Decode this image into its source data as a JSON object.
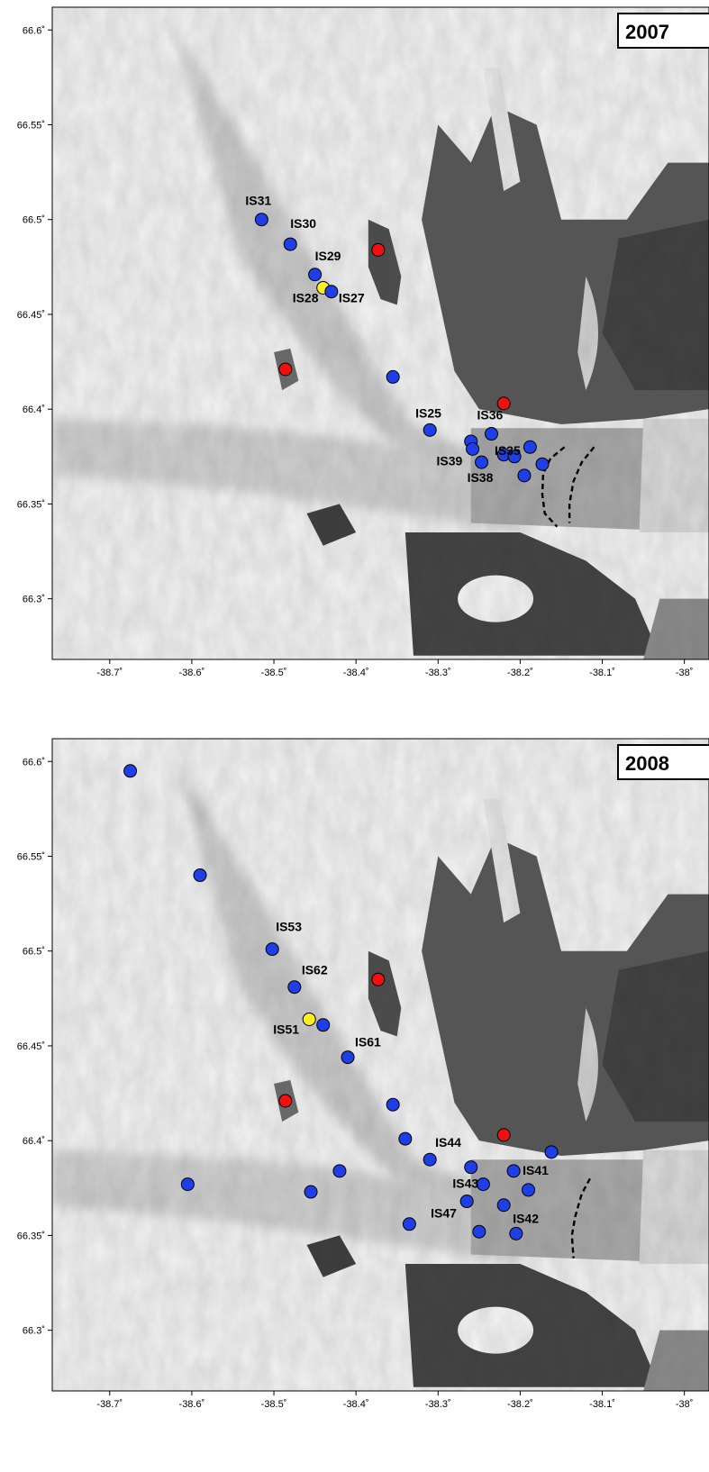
{
  "colors": {
    "blue_site": "#1f3fe6",
    "red_site": "#f01010",
    "yellow_site": "#ffee22",
    "marker_edge": "#000000"
  },
  "axes": {
    "lon_ticks": [
      {
        "value": -38.7,
        "label": "-38.7˚"
      },
      {
        "value": -38.6,
        "label": "-38.6˚"
      },
      {
        "value": -38.5,
        "label": "-38.5˚"
      },
      {
        "value": -38.4,
        "label": "-38.4˚"
      },
      {
        "value": -38.3,
        "label": "-38.3˚"
      },
      {
        "value": -38.2,
        "label": "-38.2˚"
      },
      {
        "value": -38.1,
        "label": "-38.1˚"
      },
      {
        "value": -38.0,
        "label": "-38˚"
      }
    ],
    "lat_ticks": [
      {
        "value": 66.6,
        "label": "66.6˚"
      },
      {
        "value": 66.55,
        "label": "66.55˚"
      },
      {
        "value": 66.5,
        "label": "66.5˚"
      },
      {
        "value": 66.45,
        "label": "66.45˚"
      },
      {
        "value": 66.4,
        "label": "66.4˚"
      },
      {
        "value": 66.35,
        "label": "66.35˚"
      },
      {
        "value": 66.3,
        "label": "66.3˚"
      }
    ],
    "lon_range": [
      -38.77,
      -37.97
    ],
    "lat_range": [
      66.268,
      66.612
    ]
  },
  "panels": [
    {
      "year": "2007",
      "sites": [
        {
          "lon": -38.515,
          "lat": 66.5,
          "color": "blue",
          "label": "IS31"
        },
        {
          "lon": -38.48,
          "lat": 66.487,
          "color": "blue",
          "label": "IS30"
        },
        {
          "lon": -38.45,
          "lat": 66.471,
          "color": "blue",
          "label": "IS29"
        },
        {
          "lon": -38.44,
          "lat": 66.464,
          "color": "yellow",
          "label": "IS28"
        },
        {
          "lon": -38.43,
          "lat": 66.462,
          "color": "blue",
          "label": "IS27"
        },
        {
          "lon": -38.373,
          "lat": 66.484,
          "color": "red",
          "label": ""
        },
        {
          "lon": -38.486,
          "lat": 66.421,
          "color": "red",
          "label": ""
        },
        {
          "lon": -38.355,
          "lat": 66.417,
          "color": "blue",
          "label": ""
        },
        {
          "lon": -38.22,
          "lat": 66.403,
          "color": "red",
          "label": ""
        },
        {
          "lon": -38.31,
          "lat": 66.389,
          "color": "blue",
          "label": "IS25"
        },
        {
          "lon": -38.26,
          "lat": 66.383,
          "color": "blue",
          "label": ""
        },
        {
          "lon": -38.258,
          "lat": 66.379,
          "color": "blue",
          "label": "IS39"
        },
        {
          "lon": -38.235,
          "lat": 66.387,
          "color": "blue",
          "label": "IS36"
        },
        {
          "lon": -38.22,
          "lat": 66.376,
          "color": "blue",
          "label": ""
        },
        {
          "lon": -38.207,
          "lat": 66.375,
          "color": "blue",
          "label": "IS35"
        },
        {
          "lon": -38.188,
          "lat": 66.38,
          "color": "blue",
          "label": ""
        },
        {
          "lon": -38.247,
          "lat": 66.372,
          "color": "blue",
          "label": "IS38"
        },
        {
          "lon": -38.195,
          "lat": 66.365,
          "color": "blue",
          "label": ""
        },
        {
          "lon": -38.173,
          "lat": 66.371,
          "color": "blue",
          "label": ""
        }
      ],
      "fronts": [
        [
          [
            -38.146,
            66.38
          ],
          [
            -38.163,
            66.374
          ],
          [
            -38.172,
            66.366
          ],
          [
            -38.173,
            66.355
          ],
          [
            -38.17,
            66.345
          ],
          [
            -38.155,
            66.338
          ]
        ],
        [
          [
            -38.11,
            66.38
          ],
          [
            -38.125,
            66.372
          ],
          [
            -38.135,
            66.362
          ],
          [
            -38.14,
            66.35
          ],
          [
            -38.14,
            66.34
          ]
        ]
      ]
    },
    {
      "year": "2008",
      "sites": [
        {
          "lon": -38.675,
          "lat": 66.595,
          "color": "blue",
          "label": ""
        },
        {
          "lon": -38.59,
          "lat": 66.54,
          "color": "blue",
          "label": ""
        },
        {
          "lon": -38.502,
          "lat": 66.501,
          "color": "blue",
          "label": "IS53"
        },
        {
          "lon": -38.475,
          "lat": 66.481,
          "color": "blue",
          "label": "IS62"
        },
        {
          "lon": -38.373,
          "lat": 66.485,
          "color": "red",
          "label": ""
        },
        {
          "lon": -38.457,
          "lat": 66.464,
          "color": "yellow",
          "label": "IS51"
        },
        {
          "lon": -38.44,
          "lat": 66.461,
          "color": "blue",
          "label": ""
        },
        {
          "lon": -38.41,
          "lat": 66.444,
          "color": "blue",
          "label": "IS61"
        },
        {
          "lon": -38.486,
          "lat": 66.421,
          "color": "red",
          "label": ""
        },
        {
          "lon": -38.355,
          "lat": 66.419,
          "color": "blue",
          "label": ""
        },
        {
          "lon": -38.22,
          "lat": 66.403,
          "color": "red",
          "label": ""
        },
        {
          "lon": -38.34,
          "lat": 66.401,
          "color": "blue",
          "label": ""
        },
        {
          "lon": -38.162,
          "lat": 66.394,
          "color": "blue",
          "label": ""
        },
        {
          "lon": -38.31,
          "lat": 66.39,
          "color": "blue",
          "label": "IS44"
        },
        {
          "lon": -38.26,
          "lat": 66.386,
          "color": "blue",
          "label": ""
        },
        {
          "lon": -38.208,
          "lat": 66.384,
          "color": "blue",
          "label": "IS41"
        },
        {
          "lon": -38.42,
          "lat": 66.384,
          "color": "blue",
          "label": ""
        },
        {
          "lon": -38.245,
          "lat": 66.377,
          "color": "blue",
          "label": "IS43"
        },
        {
          "lon": -38.19,
          "lat": 66.374,
          "color": "blue",
          "label": ""
        },
        {
          "lon": -38.605,
          "lat": 66.377,
          "color": "blue",
          "label": ""
        },
        {
          "lon": -38.455,
          "lat": 66.373,
          "color": "blue",
          "label": ""
        },
        {
          "lon": -38.265,
          "lat": 66.368,
          "color": "blue",
          "label": "IS47"
        },
        {
          "lon": -38.22,
          "lat": 66.366,
          "color": "blue",
          "label": "IS42"
        },
        {
          "lon": -38.335,
          "lat": 66.356,
          "color": "blue",
          "label": ""
        },
        {
          "lon": -38.25,
          "lat": 66.352,
          "color": "blue",
          "label": ""
        },
        {
          "lon": -38.205,
          "lat": 66.351,
          "color": "blue",
          "label": ""
        }
      ],
      "fronts": [
        [
          [
            -38.115,
            66.38
          ],
          [
            -38.125,
            66.372
          ],
          [
            -38.133,
            66.36
          ],
          [
            -38.137,
            66.35
          ],
          [
            -38.135,
            66.338
          ]
        ]
      ]
    }
  ]
}
